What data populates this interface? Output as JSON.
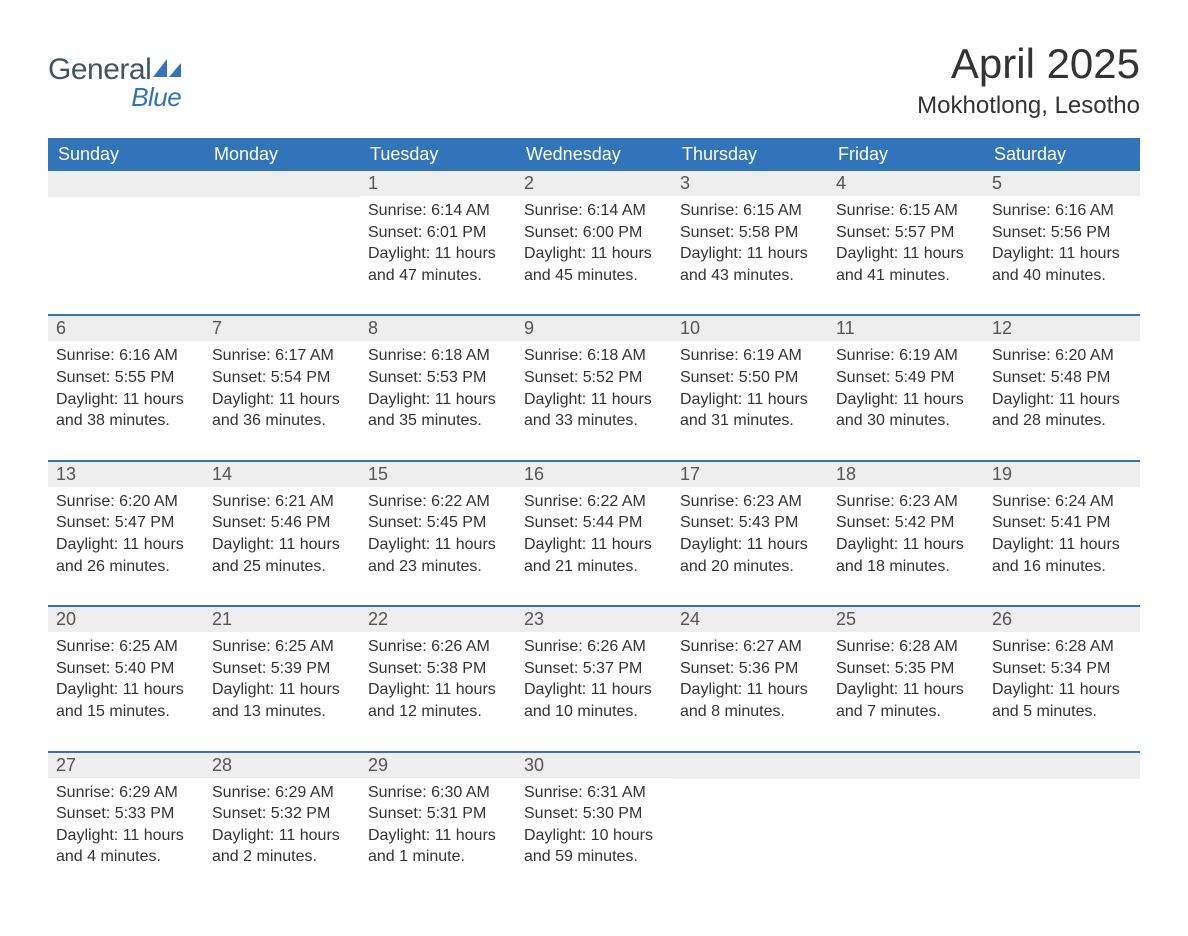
{
  "brand": {
    "text1": "General",
    "text2": "Blue",
    "logo_color": "#3174b9",
    "text1_color": "#425563"
  },
  "title": {
    "main": "April 2025",
    "sub": "Mokhotlong, Lesotho"
  },
  "colors": {
    "header_bg": "#3174b9",
    "header_text": "#ffffff",
    "daynum_bg": "#eeeeee",
    "daynum_text": "#555555",
    "body_text": "#333333",
    "row_border": "#3174b9",
    "page_bg": "#ffffff"
  },
  "typography": {
    "title_size": 42,
    "subtitle_size": 24,
    "header_cell_size": 18,
    "daynum_size": 18,
    "body_size": 16,
    "font_family": "Segoe UI"
  },
  "columns": [
    "Sunday",
    "Monday",
    "Tuesday",
    "Wednesday",
    "Thursday",
    "Friday",
    "Saturday"
  ],
  "weeks": [
    [
      {
        "num": "",
        "lines": []
      },
      {
        "num": "",
        "lines": []
      },
      {
        "num": "1",
        "lines": [
          "Sunrise: 6:14 AM",
          "Sunset: 6:01 PM",
          "Daylight: 11 hours and 47 minutes."
        ]
      },
      {
        "num": "2",
        "lines": [
          "Sunrise: 6:14 AM",
          "Sunset: 6:00 PM",
          "Daylight: 11 hours and 45 minutes."
        ]
      },
      {
        "num": "3",
        "lines": [
          "Sunrise: 6:15 AM",
          "Sunset: 5:58 PM",
          "Daylight: 11 hours and 43 minutes."
        ]
      },
      {
        "num": "4",
        "lines": [
          "Sunrise: 6:15 AM",
          "Sunset: 5:57 PM",
          "Daylight: 11 hours and 41 minutes."
        ]
      },
      {
        "num": "5",
        "lines": [
          "Sunrise: 6:16 AM",
          "Sunset: 5:56 PM",
          "Daylight: 11 hours and 40 minutes."
        ]
      }
    ],
    [
      {
        "num": "6",
        "lines": [
          "Sunrise: 6:16 AM",
          "Sunset: 5:55 PM",
          "Daylight: 11 hours and 38 minutes."
        ]
      },
      {
        "num": "7",
        "lines": [
          "Sunrise: 6:17 AM",
          "Sunset: 5:54 PM",
          "Daylight: 11 hours and 36 minutes."
        ]
      },
      {
        "num": "8",
        "lines": [
          "Sunrise: 6:18 AM",
          "Sunset: 5:53 PM",
          "Daylight: 11 hours and 35 minutes."
        ]
      },
      {
        "num": "9",
        "lines": [
          "Sunrise: 6:18 AM",
          "Sunset: 5:52 PM",
          "Daylight: 11 hours and 33 minutes."
        ]
      },
      {
        "num": "10",
        "lines": [
          "Sunrise: 6:19 AM",
          "Sunset: 5:50 PM",
          "Daylight: 11 hours and 31 minutes."
        ]
      },
      {
        "num": "11",
        "lines": [
          "Sunrise: 6:19 AM",
          "Sunset: 5:49 PM",
          "Daylight: 11 hours and 30 minutes."
        ]
      },
      {
        "num": "12",
        "lines": [
          "Sunrise: 6:20 AM",
          "Sunset: 5:48 PM",
          "Daylight: 11 hours and 28 minutes."
        ]
      }
    ],
    [
      {
        "num": "13",
        "lines": [
          "Sunrise: 6:20 AM",
          "Sunset: 5:47 PM",
          "Daylight: 11 hours and 26 minutes."
        ]
      },
      {
        "num": "14",
        "lines": [
          "Sunrise: 6:21 AM",
          "Sunset: 5:46 PM",
          "Daylight: 11 hours and 25 minutes."
        ]
      },
      {
        "num": "15",
        "lines": [
          "Sunrise: 6:22 AM",
          "Sunset: 5:45 PM",
          "Daylight: 11 hours and 23 minutes."
        ]
      },
      {
        "num": "16",
        "lines": [
          "Sunrise: 6:22 AM",
          "Sunset: 5:44 PM",
          "Daylight: 11 hours and 21 minutes."
        ]
      },
      {
        "num": "17",
        "lines": [
          "Sunrise: 6:23 AM",
          "Sunset: 5:43 PM",
          "Daylight: 11 hours and 20 minutes."
        ]
      },
      {
        "num": "18",
        "lines": [
          "Sunrise: 6:23 AM",
          "Sunset: 5:42 PM",
          "Daylight: 11 hours and 18 minutes."
        ]
      },
      {
        "num": "19",
        "lines": [
          "Sunrise: 6:24 AM",
          "Sunset: 5:41 PM",
          "Daylight: 11 hours and 16 minutes."
        ]
      }
    ],
    [
      {
        "num": "20",
        "lines": [
          "Sunrise: 6:25 AM",
          "Sunset: 5:40 PM",
          "Daylight: 11 hours and 15 minutes."
        ]
      },
      {
        "num": "21",
        "lines": [
          "Sunrise: 6:25 AM",
          "Sunset: 5:39 PM",
          "Daylight: 11 hours and 13 minutes."
        ]
      },
      {
        "num": "22",
        "lines": [
          "Sunrise: 6:26 AM",
          "Sunset: 5:38 PM",
          "Daylight: 11 hours and 12 minutes."
        ]
      },
      {
        "num": "23",
        "lines": [
          "Sunrise: 6:26 AM",
          "Sunset: 5:37 PM",
          "Daylight: 11 hours and 10 minutes."
        ]
      },
      {
        "num": "24",
        "lines": [
          "Sunrise: 6:27 AM",
          "Sunset: 5:36 PM",
          "Daylight: 11 hours and 8 minutes."
        ]
      },
      {
        "num": "25",
        "lines": [
          "Sunrise: 6:28 AM",
          "Sunset: 5:35 PM",
          "Daylight: 11 hours and 7 minutes."
        ]
      },
      {
        "num": "26",
        "lines": [
          "Sunrise: 6:28 AM",
          "Sunset: 5:34 PM",
          "Daylight: 11 hours and 5 minutes."
        ]
      }
    ],
    [
      {
        "num": "27",
        "lines": [
          "Sunrise: 6:29 AM",
          "Sunset: 5:33 PM",
          "Daylight: 11 hours and 4 minutes."
        ]
      },
      {
        "num": "28",
        "lines": [
          "Sunrise: 6:29 AM",
          "Sunset: 5:32 PM",
          "Daylight: 11 hours and 2 minutes."
        ]
      },
      {
        "num": "29",
        "lines": [
          "Sunrise: 6:30 AM",
          "Sunset: 5:31 PM",
          "Daylight: 11 hours and 1 minute."
        ]
      },
      {
        "num": "30",
        "lines": [
          "Sunrise: 6:31 AM",
          "Sunset: 5:30 PM",
          "Daylight: 10 hours and 59 minutes."
        ]
      },
      {
        "num": "",
        "lines": []
      },
      {
        "num": "",
        "lines": []
      },
      {
        "num": "",
        "lines": []
      }
    ]
  ]
}
